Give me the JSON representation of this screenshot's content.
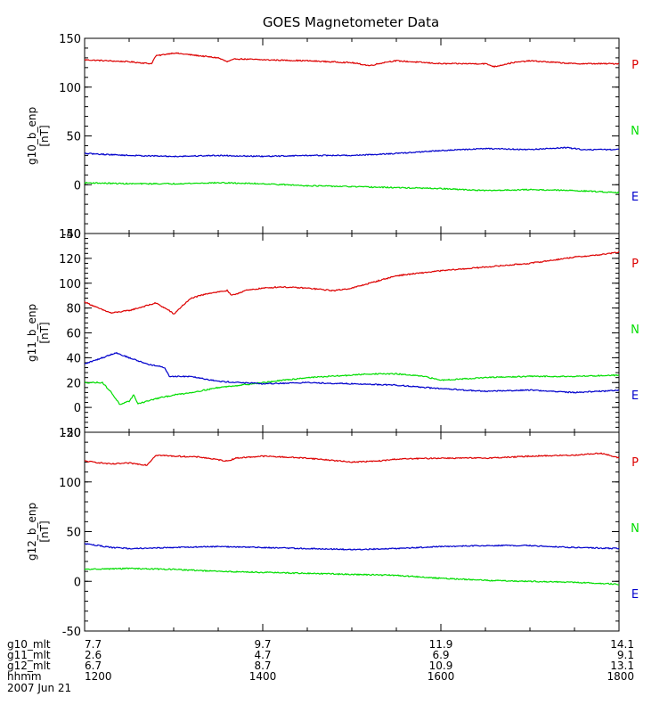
{
  "title": "GOES Magnetometer Data",
  "colors": {
    "P": "#dd0000",
    "N": "#00dd00",
    "E": "#0000cc",
    "axes": "#000000",
    "background": "#ffffff"
  },
  "chart_data": [
    {
      "type": "line",
      "ylabel": "g10_b_enp",
      "yunit": "[nT]",
      "ylim": [
        -50,
        150
      ],
      "yticks": [
        -50,
        0,
        50,
        100,
        150
      ],
      "grid": false,
      "xlim": [
        12.0,
        18.0
      ],
      "legend": [
        "P",
        "N",
        "E"
      ],
      "series": [
        {
          "name": "P",
          "color_key": "P",
          "x": [
            12.0,
            12.5,
            12.75,
            12.8,
            13.0,
            13.2,
            13.5,
            13.6,
            13.7,
            14.0,
            14.5,
            15.0,
            15.2,
            15.4,
            15.5,
            16.0,
            16.5,
            16.6,
            16.8,
            17.0,
            17.5,
            18.0
          ],
          "y": [
            128,
            126,
            124,
            132,
            135,
            133,
            130,
            126,
            129,
            128,
            127,
            125,
            122,
            126,
            127,
            124,
            124,
            121,
            125,
            127,
            124,
            124
          ]
        },
        {
          "name": "N",
          "color_key": "N",
          "x": [
            12.0,
            12.5,
            13.0,
            13.5,
            14.0,
            14.5,
            15.0,
            15.5,
            16.0,
            16.5,
            17.0,
            17.5,
            18.0
          ],
          "y": [
            2,
            1,
            1,
            2,
            1,
            -1,
            -2,
            -3,
            -4,
            -6,
            -5,
            -6,
            -8
          ]
        },
        {
          "name": "E",
          "color_key": "E",
          "x": [
            12.0,
            12.5,
            13.0,
            13.5,
            14.0,
            14.5,
            15.0,
            15.5,
            16.0,
            16.5,
            17.0,
            17.4,
            17.6,
            18.0
          ],
          "y": [
            32,
            30,
            29,
            30,
            29,
            30,
            30,
            32,
            35,
            37,
            36,
            38,
            36,
            36
          ]
        }
      ]
    },
    {
      "type": "line",
      "ylabel": "g11_b_enp",
      "yunit": "[nT]",
      "ylim": [
        -20,
        140
      ],
      "yticks": [
        -20,
        0,
        20,
        40,
        60,
        80,
        100,
        120,
        140
      ],
      "grid": false,
      "xlim": [
        12.0,
        18.0
      ],
      "legend": [
        "P",
        "N",
        "E"
      ],
      "series": [
        {
          "name": "P",
          "color_key": "P",
          "x": [
            12.0,
            12.15,
            12.3,
            12.5,
            12.8,
            12.95,
            13.0,
            13.1,
            13.2,
            13.4,
            13.6,
            13.65,
            13.8,
            14.0,
            14.2,
            14.5,
            14.8,
            15.0,
            15.2,
            15.5,
            16.0,
            16.5,
            17.0,
            17.5,
            17.8,
            18.0
          ],
          "y": [
            85,
            80,
            76,
            78,
            84,
            78,
            75,
            82,
            88,
            92,
            94,
            90,
            94,
            96,
            97,
            96,
            94,
            96,
            100,
            106,
            110,
            113,
            116,
            121,
            123,
            125
          ]
        },
        {
          "name": "N",
          "color_key": "N",
          "x": [
            12.0,
            12.2,
            12.3,
            12.4,
            12.5,
            12.55,
            12.6,
            12.8,
            13.0,
            13.2,
            13.5,
            14.0,
            14.5,
            15.0,
            15.2,
            15.5,
            15.8,
            16.0,
            16.5,
            17.0,
            17.5,
            18.0
          ],
          "y": [
            20,
            20,
            12,
            2,
            5,
            10,
            3,
            7,
            10,
            12,
            16,
            20,
            24,
            26,
            27,
            27,
            25,
            22,
            24,
            25,
            25,
            26
          ]
        },
        {
          "name": "E",
          "color_key": "E",
          "x": [
            12.0,
            12.2,
            12.35,
            12.5,
            12.7,
            12.9,
            12.95,
            13.2,
            13.5,
            14.0,
            14.5,
            15.0,
            15.5,
            16.0,
            16.5,
            17.0,
            17.5,
            17.8,
            18.0
          ],
          "y": [
            35,
            40,
            44,
            40,
            35,
            32,
            25,
            25,
            21,
            19,
            20,
            19,
            18,
            15,
            13,
            14,
            12,
            13,
            14
          ]
        }
      ]
    },
    {
      "type": "line",
      "ylabel": "g12_b_enp",
      "yunit": "[nT]",
      "ylim": [
        -50,
        150
      ],
      "yticks": [
        -50,
        0,
        50,
        100,
        150
      ],
      "grid": false,
      "xlim": [
        12.0,
        18.0
      ],
      "legend": [
        "P",
        "N",
        "E"
      ],
      "series": [
        {
          "name": "P",
          "color_key": "P",
          "x": [
            12.0,
            12.3,
            12.5,
            12.7,
            12.8,
            13.0,
            13.3,
            13.6,
            13.7,
            14.0,
            14.5,
            15.0,
            15.3,
            15.5,
            16.0,
            16.5,
            16.8,
            17.0,
            17.5,
            17.8,
            18.0
          ],
          "y": [
            121,
            118,
            119,
            117,
            127,
            126,
            125,
            121,
            124,
            126,
            124,
            120,
            121,
            123,
            124,
            124,
            125,
            126,
            127,
            129,
            124
          ]
        },
        {
          "name": "N",
          "color_key": "N",
          "x": [
            12.0,
            12.5,
            13.0,
            13.5,
            14.0,
            14.5,
            15.0,
            15.5,
            16.0,
            16.5,
            17.0,
            17.5,
            18.0
          ],
          "y": [
            12,
            13,
            12,
            10,
            9,
            8,
            7,
            6,
            3,
            1,
            0,
            -1,
            -3
          ]
        },
        {
          "name": "E",
          "color_key": "E",
          "x": [
            12.0,
            12.3,
            12.5,
            13.0,
            13.5,
            14.0,
            14.5,
            15.0,
            15.5,
            16.0,
            16.5,
            17.0,
            17.5,
            18.0
          ],
          "y": [
            38,
            34,
            33,
            34,
            35,
            34,
            33,
            32,
            33,
            35,
            36,
            36,
            34,
            33
          ]
        }
      ]
    }
  ],
  "xaxis": {
    "xlim": [
      12.0,
      18.0
    ],
    "major_ticks": [
      12,
      14,
      16,
      18
    ],
    "minor_ticks": [
      12.5,
      13,
      13.5,
      14.5,
      15,
      15.5,
      16.5,
      17,
      17.5
    ],
    "rows": [
      {
        "label": "g10_mlt",
        "values": [
          "7.7",
          "9.7",
          "11.9",
          "14.1"
        ]
      },
      {
        "label": "g11_mlt",
        "values": [
          "2.6",
          "4.7",
          "6.9",
          "9.1"
        ]
      },
      {
        "label": "g12_mlt",
        "values": [
          "6.7",
          "8.7",
          "10.9",
          "13.1"
        ]
      },
      {
        "label": "hhmm",
        "values": [
          "1200",
          "1400",
          "1600",
          "1800"
        ]
      }
    ],
    "date": "2007 Jun 21"
  }
}
